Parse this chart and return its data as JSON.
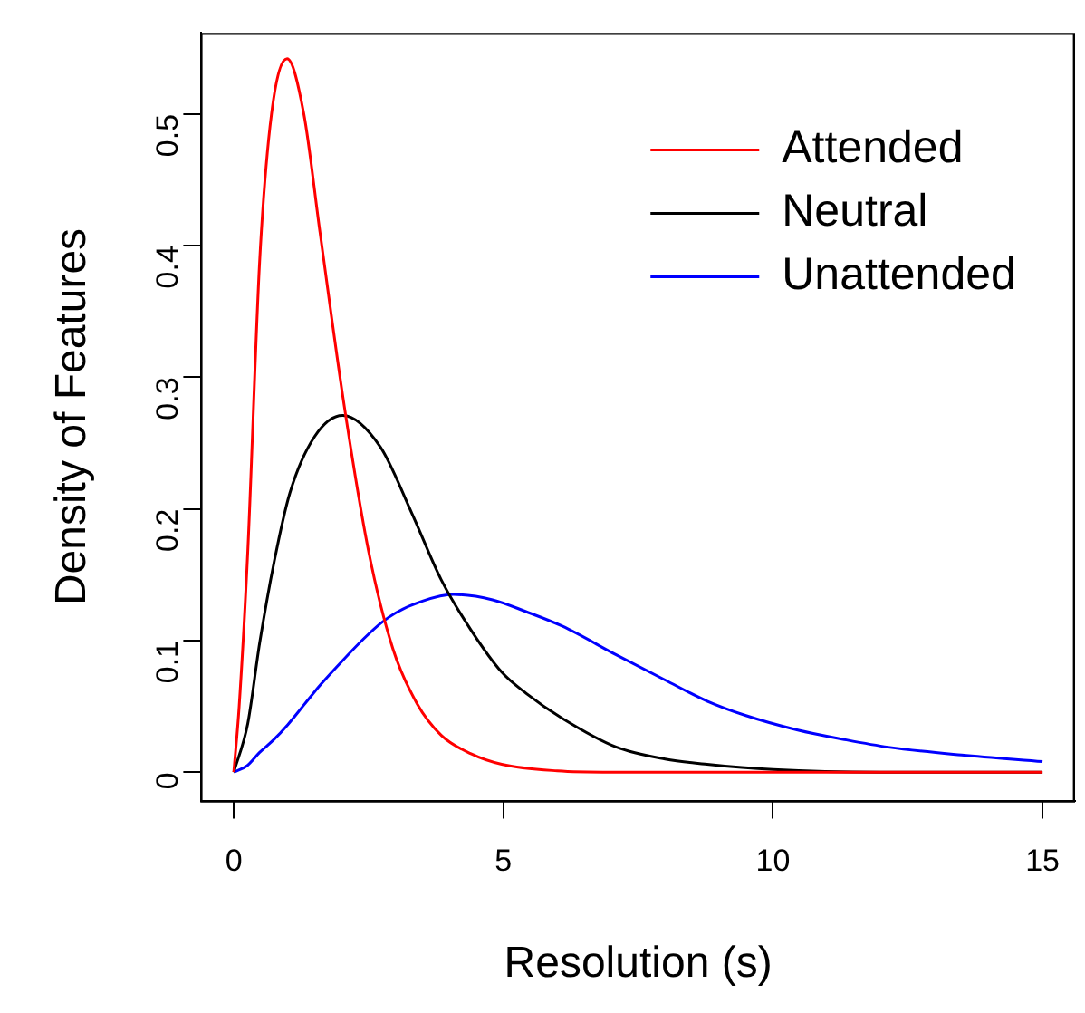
{
  "chart_data": {
    "type": "line",
    "xlabel": "Resolution (s)",
    "ylabel": "Density of Features",
    "xlim": [
      -0.6,
      15.6
    ],
    "ylim": [
      -0.0216,
      0.5616
    ],
    "xticks": [
      0,
      5,
      10,
      15
    ],
    "yticks": [
      0,
      0.1,
      0.2,
      0.3,
      0.4,
      0.5
    ],
    "grid": false,
    "legend": "top right",
    "marker": "none",
    "line_style": "solid",
    "series": [
      {
        "name": "Attended",
        "color": "#ff0000",
        "x": [
          0,
          0.1,
          0.26,
          0.48,
          0.7,
          0.99,
          1.3,
          1.6,
          2.05,
          2.5,
          2.95,
          3.4,
          3.85,
          4.4,
          4.97,
          6,
          7,
          8,
          10,
          12,
          15
        ],
        "values": [
          0,
          0.05,
          0.168,
          0.388,
          0.5,
          0.542,
          0.5,
          0.41,
          0.278,
          0.168,
          0.094,
          0.052,
          0.028,
          0.014,
          0.006,
          0.001,
          0,
          0,
          0,
          0,
          0
        ]
      },
      {
        "name": "Neutral",
        "color": "#000000",
        "x": [
          0,
          0.26,
          0.48,
          0.75,
          1.04,
          1.5,
          2.02,
          2.72,
          3.3,
          3.85,
          4.4,
          4.97,
          5.42,
          6.09,
          7.1,
          8,
          8.78,
          10,
          12,
          15
        ],
        "values": [
          0,
          0.037,
          0.098,
          0.16,
          0.212,
          0.255,
          0.271,
          0.247,
          0.197,
          0.146,
          0.108,
          0.076,
          0.06,
          0.041,
          0.019,
          0.01,
          0.006,
          0.002,
          0,
          0
        ]
      },
      {
        "name": "Unattended",
        "color": "#0000ff",
        "x": [
          0,
          0.25,
          0.48,
          0.75,
          1,
          1.3,
          1.6,
          2,
          2.4,
          2.72,
          3,
          3.5,
          4.07,
          4.8,
          5.42,
          6.09,
          7.1,
          8,
          8.78,
          9.5,
          10.46,
          11.3,
          12.14,
          13.5,
          15
        ],
        "values": [
          0,
          0.005,
          0.015,
          0.025,
          0.036,
          0.051,
          0.066,
          0.084,
          0.101,
          0.113,
          0.121,
          0.13,
          0.135,
          0.131,
          0.122,
          0.111,
          0.089,
          0.07,
          0.054,
          0.043,
          0.032,
          0.025,
          0.019,
          0.013,
          0.008
        ]
      }
    ]
  }
}
